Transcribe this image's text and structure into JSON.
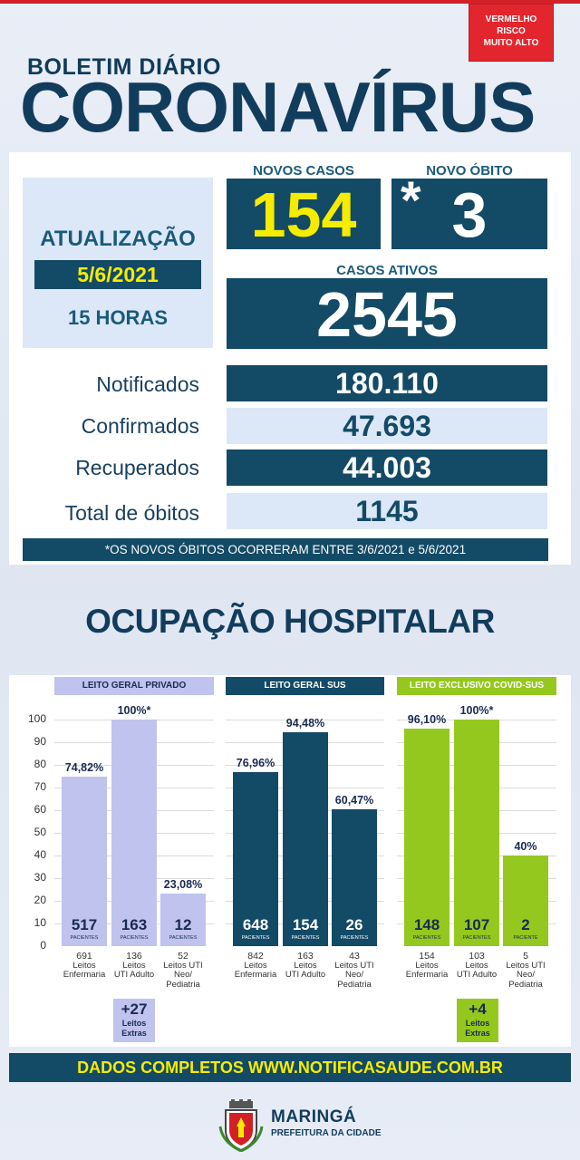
{
  "risk": {
    "line1": "VERMELHO",
    "line2": "RISCO",
    "line3": "MUITO ALTO"
  },
  "header": {
    "subtitle": "BOLETIM DIÁRIO",
    "title": "CORONAVÍRUS"
  },
  "update": {
    "label": "ATUALIZAÇÃO",
    "date": "5/6/2021",
    "time": "15 HORAS"
  },
  "kpis": {
    "new_cases_label": "NOVOS CASOS",
    "new_cases": "154",
    "new_death_label": "NOVO ÓBITO",
    "new_death_mark": "*",
    "new_death": "3",
    "active_label": "CASOS ATIVOS",
    "active": "2545"
  },
  "stats": [
    {
      "label": "Notificados",
      "value": "180.110"
    },
    {
      "label": "Confirmados",
      "value": "47.693"
    },
    {
      "label": "Recuperados",
      "value": "44.003"
    },
    {
      "label": "Total de óbitos",
      "value": "1145"
    }
  ],
  "note": "*OS NOVOS ÓBITOS OCORRERAM ENTRE 3/6/2021 e 5/6/2021",
  "section_title": "OCUPAÇÃO HOSPITALAR",
  "chart_data": {
    "type": "bar",
    "title": "OCUPAÇÃO HOSPITALAR",
    "ylim": [
      0,
      100
    ],
    "yticks": [
      "100",
      "90",
      "80",
      "70",
      "60",
      "50",
      "40",
      "30",
      "20",
      "10",
      "0"
    ],
    "patients_word": "PACIENTES",
    "patient_word": "PACIENTE",
    "groups": [
      {
        "name": "LEITO GERAL PRIVADO",
        "color": "#bfc3ee",
        "extra": {
          "count": "+27",
          "line1": "Leitos",
          "line2": "Extras"
        },
        "bars": [
          {
            "value": 74.82,
            "label": "74,82%",
            "patients": "517",
            "beds": "691",
            "cap1": "Leitos",
            "cap2": "Enfermaria",
            "cap3": ""
          },
          {
            "value": 100,
            "label": "100%*",
            "patients": "163",
            "beds": "136",
            "cap1": "Leitos",
            "cap2": "UTI Adulto",
            "cap3": ""
          },
          {
            "value": 23.08,
            "label": "23,08%",
            "patients": "12",
            "beds": "52",
            "cap1": "Leitos UTI",
            "cap2": "Neo/",
            "cap3": "Pediatria"
          }
        ]
      },
      {
        "name": "LEITO GERAL SUS",
        "color": "#134a66",
        "bars": [
          {
            "value": 76.96,
            "label": "76,96%",
            "patients": "648",
            "beds": "842",
            "cap1": "Leitos",
            "cap2": "Enfermaria",
            "cap3": ""
          },
          {
            "value": 94.48,
            "label": "94,48%",
            "patients": "154",
            "beds": "163",
            "cap1": "Leitos",
            "cap2": "UTI Adulto",
            "cap3": ""
          },
          {
            "value": 60.47,
            "label": "60,47%",
            "patients": "26",
            "beds": "43",
            "cap1": "Leitos UTI",
            "cap2": "Neo/",
            "cap3": "Pediatria"
          }
        ]
      },
      {
        "name": "LEITO EXCLUSIVO COVID-SUS",
        "color": "#94c81e",
        "extra": {
          "count": "+4",
          "line1": "Leitos",
          "line2": "Extras"
        },
        "bars": [
          {
            "value": 96.1,
            "label": "96,10%",
            "patients": "148",
            "beds": "154",
            "cap1": "Leitos",
            "cap2": "Enfermaria",
            "cap3": ""
          },
          {
            "value": 100,
            "label": "100%*",
            "patients": "107",
            "beds": "103",
            "cap1": "Leitos",
            "cap2": "UTI Adulto",
            "cap3": ""
          },
          {
            "value": 40,
            "label": "40%",
            "patients": "2",
            "patients_unit": "PACIENTE",
            "beds": "5",
            "cap1": "Leitos UTI",
            "cap2": "Neo/",
            "cap3": "Pediatria"
          }
        ]
      }
    ]
  },
  "footer": "DADOS COMPLETOS  WWW.NOTIFICASAUDE.COM.BR",
  "brand": {
    "city": "MARINGÁ",
    "sub": "PREFEITURA DA CIDADE"
  }
}
